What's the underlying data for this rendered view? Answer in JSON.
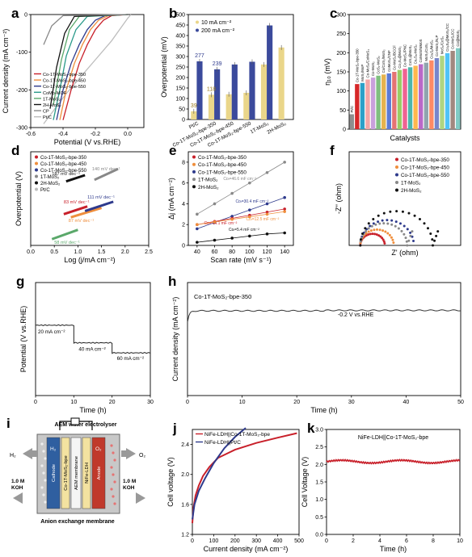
{
  "colors": {
    "red": "#c8202a",
    "orange": "#ef8e3c",
    "blue": "#2e3a8c",
    "gray": "#888888",
    "black": "#111111",
    "green": "#5aa86a",
    "teal": "#2a9a8a",
    "lgray": "#bdbdbd",
    "bar10": "#ead68a",
    "bar200": "#3b4a9c"
  },
  "panels": [
    {
      "id": "a",
      "letter": "a",
      "type": "line",
      "xlabel": "Potential (V vs.RHE)",
      "ylabel": "Current density (mA cm⁻²)",
      "xlim": [
        -0.6,
        0.1
      ],
      "ylim": [
        -300,
        0
      ],
      "xticks": [
        {
          "v": -0.6,
          "t": "-0.6"
        },
        {
          "v": -0.4,
          "t": "-0.4"
        },
        {
          "v": -0.2,
          "t": "-0.2"
        },
        {
          "v": 0.0,
          "t": "0.0"
        }
      ],
      "yticks": [
        {
          "v": 0,
          "t": "0"
        },
        {
          "v": -100,
          "t": "-100"
        },
        {
          "v": -200,
          "t": "-200"
        },
        {
          "v": -300,
          "t": "-300"
        }
      ],
      "legend": [
        "Co-1T-MoS₂-bpe-350",
        "Co-1T-MoS₂-bpe-450",
        "Co-1T-MoS₂-bpe-550",
        "CoMo-MOF",
        "1T-MoS₂",
        "2H-MoS₂",
        "CP",
        "Pt/C"
      ],
      "series": [
        {
          "name": "Pt/C",
          "color": "lgray",
          "x": [
            0.02,
            0.0,
            -0.05,
            -0.1,
            -0.2,
            -0.3,
            -0.38,
            -0.45,
            -0.52
          ],
          "y": [
            0,
            -10,
            -40,
            -70,
            -120,
            -170,
            -210,
            -250,
            -290
          ]
        },
        {
          "name": "Co-1T-MoS₂-bpe-350",
          "color": "red",
          "x": [
            0.0,
            -0.1,
            -0.15,
            -0.2,
            -0.25,
            -0.3,
            -0.35,
            -0.4
          ],
          "y": [
            0,
            -3,
            -15,
            -40,
            -80,
            -130,
            -200,
            -280
          ]
        },
        {
          "name": "Co-1T-MoS₂-bpe-450",
          "color": "orange",
          "x": [
            0.0,
            -0.12,
            -0.18,
            -0.23,
            -0.28,
            -0.33,
            -0.38,
            -0.42
          ],
          "y": [
            0,
            -3,
            -15,
            -40,
            -80,
            -130,
            -200,
            -280
          ]
        },
        {
          "name": "Co-1T-MoS₂-bpe-550",
          "color": "blue",
          "x": [
            0.0,
            -0.14,
            -0.2,
            -0.25,
            -0.3,
            -0.35,
            -0.4,
            -0.44
          ],
          "y": [
            0,
            -3,
            -15,
            -40,
            -80,
            -130,
            -200,
            -280
          ]
        },
        {
          "name": "CoMo-MOF",
          "color": "teal",
          "x": [
            0.0,
            -0.25,
            -0.32,
            -0.38,
            -0.42,
            -0.46
          ],
          "y": [
            0,
            -5,
            -40,
            -110,
            -200,
            -280
          ]
        },
        {
          "name": "1T-MoS₂",
          "color": "green",
          "x": [
            0.0,
            -0.3,
            -0.36,
            -0.41,
            -0.46
          ],
          "y": [
            0,
            -5,
            -40,
            -120,
            -240
          ]
        },
        {
          "name": "2H-MoS₂",
          "color": "black",
          "x": [
            0.0,
            -0.33,
            -0.39,
            -0.44,
            -0.48
          ],
          "y": [
            0,
            -5,
            -50,
            -140,
            -250
          ]
        },
        {
          "name": "CP",
          "color": "gray",
          "x": [
            0.0,
            -0.4,
            -0.47,
            -0.52
          ],
          "y": [
            0,
            -3,
            -30,
            -80
          ]
        }
      ]
    },
    {
      "id": "b",
      "letter": "b",
      "type": "bar",
      "ylabel": "Overpotential (mV)",
      "ylim": [
        0,
        500
      ],
      "yticks": [
        {
          "v": 0,
          "t": "0"
        },
        {
          "v": 50,
          "t": "50"
        },
        {
          "v": 100,
          "t": "100"
        },
        {
          "v": 150,
          "t": "150"
        },
        {
          "v": 200,
          "t": "200"
        },
        {
          "v": 250,
          "t": "250"
        },
        {
          "v": 300,
          "t": "300"
        },
        {
          "v": 350,
          "t": "350"
        },
        {
          "v": 400,
          "t": "400"
        },
        {
          "v": 450,
          "t": "450"
        },
        {
          "v": 500,
          "t": "500"
        }
      ],
      "legend": [
        "10 mA cm⁻²",
        "200 mA cm⁻²"
      ],
      "categories": [
        "Pt/C",
        "Co-1T-MoS₂-bpe-350",
        "Co-1T-MoS₂-bpe-450",
        "Co-1T-MoS₂-bpe-550",
        "1T-MoS₂",
        "2H-MoS₂"
      ],
      "series": [
        {
          "name": "10 mA cm⁻²",
          "color": "bar10",
          "values": [
            39,
            118,
            120,
            127,
            262,
            343
          ]
        },
        {
          "name": "200 mA cm⁻²",
          "color": "bar200",
          "values": [
            277,
            239,
            262,
            275,
            448,
            0
          ]
        }
      ],
      "labels": [
        {
          "ci": 0,
          "si": 0,
          "t": "39"
        },
        {
          "ci": 0,
          "si": 1,
          "t": "277"
        },
        {
          "ci": 1,
          "si": 0,
          "t": "118"
        },
        {
          "ci": 1,
          "si": 1,
          "t": "239"
        }
      ]
    },
    {
      "id": "c",
      "letter": "c",
      "type": "bar1",
      "ylabel": "η₁₀ (mV)",
      "xlabel": "Catalysts",
      "ylim": [
        0,
        300
      ],
      "yticks": [
        {
          "v": 0,
          "t": "0"
        },
        {
          "v": 50,
          "t": "50"
        },
        {
          "v": 100,
          "t": "100"
        },
        {
          "v": 150,
          "t": "150"
        },
        {
          "v": 200,
          "t": "200"
        },
        {
          "v": 250,
          "t": "250"
        },
        {
          "v": 300,
          "t": "300"
        }
      ],
      "categories": [
        "Pt/C",
        "Co-1T-MoS₂-bpe-350",
        "MoS₂/MoP",
        "Co-MoS₂/CoMoS₄",
        "Co-MoS₂",
        "CoS₂-MoS₂",
        "Co/CoS₂/MoS₂",
        "CoMoS₄/CNF",
        "Co-MoS₂/BCCF",
        "Co₃S₄@MoS₂",
        "Co-MoS₂/PNC",
        "CoS₂@MoS₂",
        "Co₂S₈-MoS₂",
        "CoMoS/NiMoS",
        "MoS₂/CoS₂",
        "CoₓSᵧ/MoS₂",
        "Co-MoS₂/N,P",
        "MoS₂/CoS₂",
        "Co₉S₈@MoS₂/CC",
        "Co-MoS₂/CC",
        "Co@MoS₂"
      ],
      "values": [
        39,
        118,
        121,
        130,
        135,
        140,
        143,
        146,
        150,
        155,
        158,
        162,
        166,
        170,
        174,
        180,
        186,
        192,
        199,
        205,
        212
      ],
      "bar_colors": [
        "#8e8e8e",
        "#d62728",
        "#2ca0c8",
        "#f4a6a6",
        "#c9a0dc",
        "#7fbf7f",
        "#e6b34d",
        "#5b7bd6",
        "#e57373",
        "#9ccc65",
        "#f06292",
        "#4db6ac",
        "#ffb74d",
        "#ba68c8",
        "#90a4ae",
        "#ff8a65",
        "#7986cb",
        "#aed581",
        "#4fc3f7",
        "#a1887f",
        "#80cbc4"
      ]
    },
    {
      "id": "d",
      "letter": "d",
      "type": "tafel",
      "xlabel": "Log (j/mA cm⁻²)",
      "ylabel": "Overpotential (V)",
      "xlim": [
        0,
        2.5
      ],
      "ylim": [
        0,
        0.3
      ],
      "xticks": [
        {
          "v": 0,
          "t": "0.0"
        },
        {
          "v": 0.5,
          "t": "0.5"
        },
        {
          "v": 1.0,
          "t": "1.0"
        },
        {
          "v": 1.5,
          "t": "1.5"
        },
        {
          "v": 2.0,
          "t": "2.0"
        },
        {
          "v": 2.5,
          "t": "2.5"
        }
      ],
      "legend": [
        "Co-1T-MoS₂-bpe-350",
        "Co-1T-MoS₂-bpe-450",
        "Co-1T-MoS₂-bpe-550",
        "1T-MoS₂",
        "2H-MoS₂",
        "Pt/C"
      ],
      "series": [
        {
          "name": "Pt/C",
          "color": "green",
          "x": [
            0.45,
            1.0
          ],
          "y": [
            0.02,
            0.05
          ],
          "label": "58 mV dec⁻¹",
          "lx": 0.5,
          "ly": 0.005
        },
        {
          "name": "Co-1T-MoS₂-bpe-450",
          "color": "orange",
          "x": [
            0.85,
            1.5
          ],
          "y": [
            0.09,
            0.12
          ],
          "label": "87 mV dec⁻¹",
          "lx": 0.8,
          "ly": 0.075
        },
        {
          "name": "Co-1T-MoS₂-bpe-350",
          "color": "red",
          "x": [
            0.7,
            1.2
          ],
          "y": [
            0.1,
            0.125
          ],
          "label": "83 mV dec⁻¹",
          "lx": 0.7,
          "ly": 0.135
        },
        {
          "name": "Co-1T-MoS₂-bpe-550",
          "color": "blue",
          "x": [
            1.15,
            1.75
          ],
          "y": [
            0.11,
            0.14
          ],
          "label": "111 mV dec⁻¹",
          "lx": 1.2,
          "ly": 0.15
        },
        {
          "name": "1T-MoS₂",
          "color": "gray",
          "x": [
            1.35,
            1.85
          ],
          "y": [
            0.21,
            0.245
          ],
          "label": "140 mV dec⁻¹",
          "lx": 1.3,
          "ly": 0.24
        },
        {
          "name": "2H-MoS₂",
          "color": "black",
          "x": [
            0.75,
            1.15
          ],
          "y": [
            0.205,
            0.225
          ],
          "label": "187 mV dec⁻¹",
          "lx": 0.45,
          "ly": 0.225
        }
      ]
    },
    {
      "id": "e",
      "letter": "e",
      "type": "linear",
      "xlabel": "Scan rate (mV s⁻¹)",
      "ylabel": "Δj (mA cm⁻²)",
      "xlim": [
        30,
        150
      ],
      "ylim": [
        0,
        9
      ],
      "xticks": [
        {
          "v": 40,
          "t": "40"
        },
        {
          "v": 60,
          "t": "60"
        },
        {
          "v": 80,
          "t": "80"
        },
        {
          "v": 100,
          "t": "100"
        },
        {
          "v": 120,
          "t": "120"
        },
        {
          "v": 140,
          "t": "140"
        }
      ],
      "yticks": [
        {
          "v": 0,
          "t": "0"
        },
        {
          "v": 2,
          "t": "2"
        },
        {
          "v": 4,
          "t": "4"
        },
        {
          "v": 6,
          "t": "6"
        },
        {
          "v": 8,
          "t": "8"
        }
      ],
      "x": [
        40,
        60,
        80,
        100,
        120,
        140
      ],
      "legend": [
        "Co-1T-MoS₂-bpe-350",
        "Co-1T-MoS₂-bpe-450",
        "Co-1T-MoS₂-bpe-550",
        "1T-MoS₂",
        "2H-MoS₂"
      ],
      "series": [
        {
          "name": "1T-MoS₂",
          "color": "gray",
          "y": [
            3.0,
            4.0,
            5.0,
            6.0,
            7.0,
            8.0
          ],
          "label": "Cᴅₗ=46.6 mF cm⁻²",
          "lx": 70,
          "ly": 6.3
        },
        {
          "name": "Co-1T-MoS₂-bpe-550",
          "color": "blue",
          "y": [
            1.6,
            2.2,
            2.8,
            3.4,
            4.0,
            4.6
          ],
          "label": "Cᴅₗ=30.4 mF cm⁻²",
          "lx": 84,
          "ly": 4.1
        },
        {
          "name": "Co-1T-MoS₂-bpe-350",
          "color": "red",
          "y": [
            2.0,
            2.3,
            2.6,
            2.9,
            3.2,
            3.5
          ],
          "label": "Cᴅₗ=14.1 mF cm⁻²",
          "lx": 48,
          "ly": 2.0
        },
        {
          "name": "Co-1T-MoS₂-bpe-450",
          "color": "orange",
          "y": [
            2.0,
            2.25,
            2.5,
            2.75,
            3.0,
            3.25
          ],
          "label": "Cᴅₗ=12.5 mF cm⁻²",
          "lx": 96,
          "ly": 2.4
        },
        {
          "name": "2H-MoS₂",
          "color": "black",
          "y": [
            0.3,
            0.5,
            0.7,
            0.9,
            1.1,
            1.2
          ],
          "label": "Cᴅₗ=5.4 mF cm⁻²",
          "lx": 76,
          "ly": 1.4
        }
      ]
    },
    {
      "id": "f",
      "letter": "f",
      "type": "nyquist",
      "xlabel": "Z' (ohm)",
      "ylabel": "-Z'' (ohm)",
      "legend": [
        "Co-1T-MoS₂-bpe-350",
        "Co-1T-MoS₂-bpe-450",
        "Co-1T-MoS₂-bpe-550",
        "1T-MoS₂",
        "2H-MoS₂"
      ],
      "series": [
        {
          "name": "Co-1T-MoS₂-bpe-350",
          "color": "red",
          "x0": 2,
          "r": 2.2,
          "tail": false
        },
        {
          "name": "Co-1T-MoS₂-bpe-450",
          "color": "orange",
          "x0": 2,
          "r": 3.0,
          "tail": false
        },
        {
          "name": "Co-1T-MoS₂-bpe-550",
          "color": "blue",
          "x0": 2,
          "r": 4.8,
          "tail": false
        },
        {
          "name": "1T-MoS₂",
          "color": "gray",
          "x0": 2,
          "r": 4.2,
          "tail": true
        },
        {
          "name": "2H-MoS₂",
          "color": "black",
          "x0": 2,
          "r": 6.5,
          "tail": true
        }
      ]
    },
    {
      "id": "g",
      "letter": "g",
      "type": "stability",
      "xlabel": "Time (h)",
      "ylabel": "Potential (V vs.RHE)",
      "xlim": [
        0,
        30
      ],
      "xticks": [
        {
          "v": 0,
          "t": "0"
        },
        {
          "v": 10,
          "t": "10"
        },
        {
          "v": 20,
          "t": "20"
        },
        {
          "v": 30,
          "t": "30"
        }
      ],
      "segments": [
        {
          "x": [
            0,
            10
          ],
          "y": -0.17,
          "label": "20 mA cm⁻²"
        },
        {
          "x": [
            10,
            20
          ],
          "y": -0.24,
          "label": "40 mA cm⁻²"
        },
        {
          "x": [
            20,
            30
          ],
          "y": -0.28,
          "label": "60 mA cm⁻²"
        }
      ]
    },
    {
      "id": "h",
      "letter": "h",
      "type": "chrono",
      "xlabel": "Time (h)",
      "ylabel": "Current density (mA cm⁻²)",
      "xlim": [
        0,
        50
      ],
      "xticks": [
        {
          "v": 0,
          "t": "0"
        },
        {
          "v": 10,
          "t": "10"
        },
        {
          "v": 20,
          "t": "20"
        },
        {
          "v": 30,
          "t": "30"
        },
        {
          "v": 40,
          "t": "40"
        },
        {
          "v": 50,
          "t": "50"
        }
      ],
      "title": "Co-1T-MoS₂-bpe-350",
      "annotation": "-0.2 V vs.RHE"
    },
    {
      "id": "i",
      "letter": "i",
      "type": "schematic",
      "top": "AEM water electrolyser",
      "bottom": "Anion exchange membrane",
      "h2": "H₂",
      "o2": "O₂",
      "koh_l": [
        "1.0 M",
        "KOH"
      ],
      "koh_r": [
        "1.0 M",
        "KOH"
      ],
      "layers": [
        "Cathode",
        "Co-1T-MoS₂-bpe",
        "AEM membrane",
        "NiFe-LDH",
        "Anode"
      ]
    },
    {
      "id": "j",
      "letter": "j",
      "type": "polar",
      "xlabel": "Current density (mA cm⁻²)",
      "ylabel": "Cell voltage (V)",
      "xlim": [
        0,
        500
      ],
      "ylim": [
        1.2,
        2.6
      ],
      "xticks": [
        {
          "v": 0,
          "t": "0"
        },
        {
          "v": 100,
          "t": "100"
        },
        {
          "v": 200,
          "t": "200"
        },
        {
          "v": 300,
          "t": "300"
        },
        {
          "v": 400,
          "t": "400"
        },
        {
          "v": 500,
          "t": "500"
        }
      ],
      "yticks": [
        {
          "v": 1.2,
          "t": "1.2"
        },
        {
          "v": 1.6,
          "t": "1.6"
        },
        {
          "v": 2.0,
          "t": "2.0"
        },
        {
          "v": 2.4,
          "t": "2.4"
        }
      ],
      "legend": [
        "NiFe-LDH||Co-1T-MoS₂-bpe",
        "NiFe-LDH||Pt/C"
      ],
      "series": [
        {
          "name": "NiFe-LDH||Co-1T-MoS₂-bpe",
          "color": "red",
          "x": [
            0,
            5,
            15,
            30,
            50,
            80,
            120,
            200,
            300,
            400,
            490
          ],
          "y": [
            1.35,
            1.55,
            1.72,
            1.85,
            1.98,
            2.1,
            2.22,
            2.33,
            2.42,
            2.49,
            2.55
          ]
        },
        {
          "name": "NiFe-LDH||Pt/C",
          "color": "blue",
          "x": [
            0,
            10,
            30,
            60,
            100,
            150,
            200,
            250
          ],
          "y": [
            1.4,
            1.6,
            1.78,
            1.95,
            2.15,
            2.35,
            2.5,
            2.62
          ]
        }
      ]
    },
    {
      "id": "k",
      "letter": "k",
      "type": "cellstab",
      "xlabel": "Time (h)",
      "ylabel": "Cell Voltage (V)",
      "xlim": [
        0,
        10
      ],
      "ylim": [
        0,
        3.0
      ],
      "xticks": [
        {
          "v": 0,
          "t": "0"
        },
        {
          "v": 2,
          "t": "2"
        },
        {
          "v": 4,
          "t": "4"
        },
        {
          "v": 6,
          "t": "6"
        },
        {
          "v": 8,
          "t": "8"
        },
        {
          "v": 10,
          "t": "10"
        }
      ],
      "yticks": [
        {
          "v": 0,
          "t": "0.0"
        },
        {
          "v": 0.5,
          "t": "0.5"
        },
        {
          "v": 1.0,
          "t": "1.0"
        },
        {
          "v": 1.5,
          "t": "1.5"
        },
        {
          "v": 2.0,
          "t": "2.0"
        },
        {
          "v": 2.5,
          "t": "2.5"
        },
        {
          "v": 3.0,
          "t": "3.0"
        }
      ],
      "title": "NiFe-LDH||Co-1T-MoS₂-bpe",
      "level": 2.08
    }
  ]
}
